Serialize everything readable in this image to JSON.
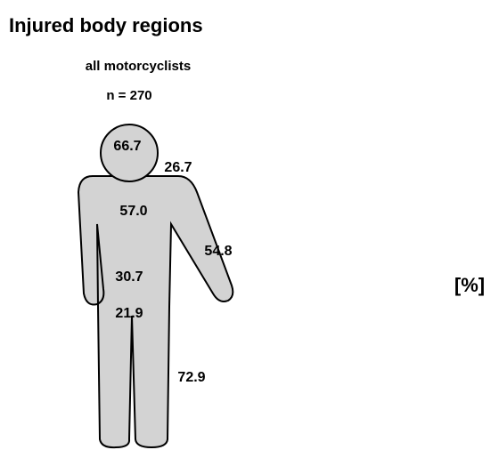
{
  "title": "Injured body regions",
  "subtitle": "all motorcyclists",
  "sample": "n = 270",
  "values": [
    "66.7",
    "26.7",
    "57.0",
    "54.8",
    "30.7",
    "21.9",
    "72.9"
  ],
  "unit": "[%]"
}
